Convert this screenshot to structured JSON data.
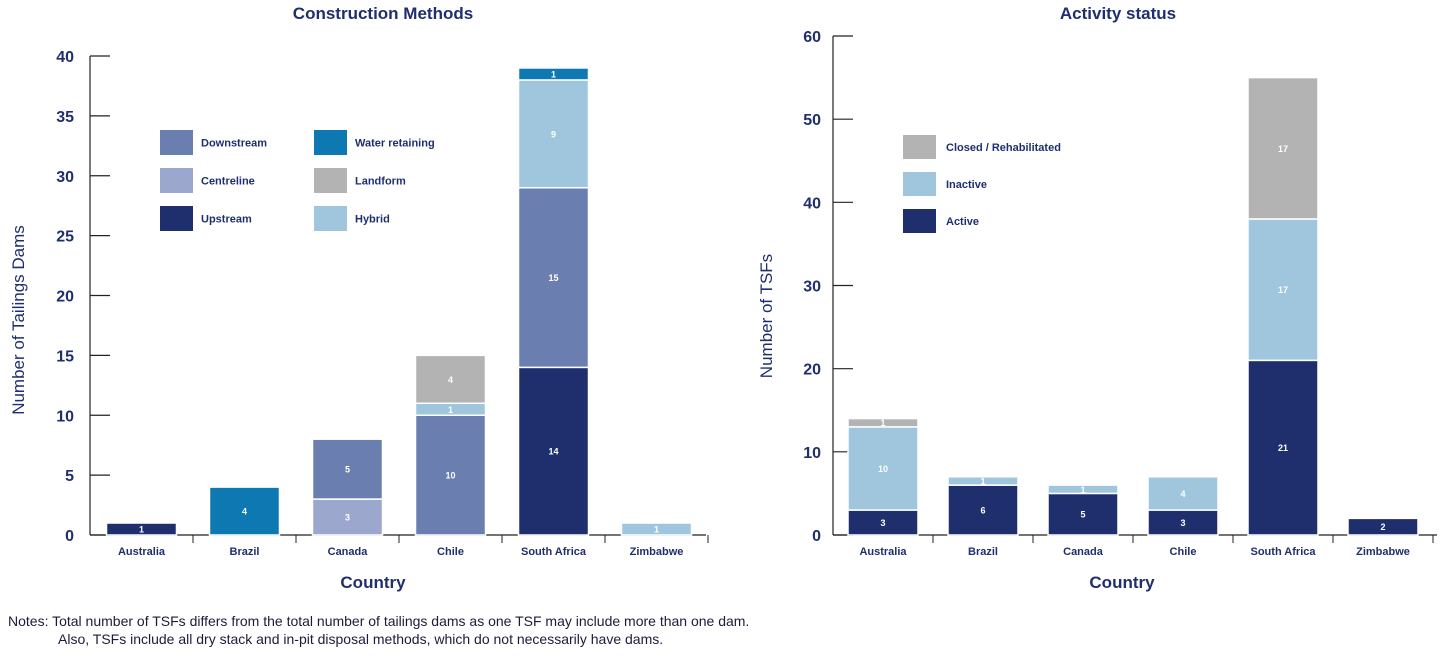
{
  "notes": {
    "line1": "Notes: Total number of TSFs differs from the total number of tailings dams as one TSF may include more than one dam.",
    "line2": "Also, TSFs include all dry stack and in-pit disposal methods, which do not necessarily have dams."
  },
  "chart_data": [
    {
      "type": "bar",
      "stacked": true,
      "title": "Construction Methods",
      "xlabel": "Country",
      "ylabel": "Number of Tailings Dams",
      "ylim": [
        0,
        40
      ],
      "yticks": [
        0,
        5,
        10,
        15,
        20,
        25,
        30,
        35,
        40
      ],
      "legend_position": "top-left",
      "categories": [
        "Australia",
        "Brazil",
        "Canada",
        "Chile",
        "South Africa",
        "Zimbabwe"
      ],
      "series": [
        {
          "name": "Upstream",
          "color": "#1f2f6e",
          "values": [
            1,
            0,
            0,
            0,
            14,
            0
          ]
        },
        {
          "name": "Centreline",
          "color": "#9ba7cd",
          "values": [
            0,
            0,
            3,
            0,
            0,
            0
          ]
        },
        {
          "name": "Downstream",
          "color": "#6a7fb0",
          "values": [
            0,
            0,
            5,
            10,
            15,
            0
          ]
        },
        {
          "name": "Hybrid",
          "color": "#9fc6dc",
          "values": [
            0,
            0,
            0,
            1,
            9,
            1
          ]
        },
        {
          "name": "Landform",
          "color": "#b3b3b3",
          "values": [
            0,
            0,
            0,
            4,
            0,
            0
          ]
        },
        {
          "name": "Water retaining",
          "color": "#0d78b2",
          "values": [
            0,
            4,
            0,
            0,
            1,
            0
          ]
        }
      ],
      "legend": [
        "Downstream",
        "Water retaining",
        "Centreline",
        "Landform",
        "Upstream",
        "Hybrid"
      ]
    },
    {
      "type": "bar",
      "stacked": true,
      "title": "Activity status",
      "xlabel": "Country",
      "ylabel": "Number of TSFs",
      "ylim": [
        0,
        60
      ],
      "yticks": [
        0,
        10,
        20,
        30,
        40,
        50,
        60
      ],
      "legend_position": "top-left",
      "categories": [
        "Australia",
        "Brazil",
        "Canada",
        "Chile",
        "South Africa",
        "Zimbabwe"
      ],
      "series": [
        {
          "name": "Active",
          "color": "#1f2f6e",
          "values": [
            3,
            6,
            5,
            3,
            21,
            2
          ]
        },
        {
          "name": "Inactive",
          "color": "#9fc6dc",
          "values": [
            10,
            1,
            1,
            4,
            17,
            0
          ]
        },
        {
          "name": "Closed / Rehabilitated",
          "color": "#b3b3b3",
          "values": [
            1,
            0,
            0,
            0,
            17,
            0
          ]
        }
      ],
      "legend": [
        "Closed / Rehabilitated",
        "Inactive",
        "Active"
      ]
    }
  ]
}
